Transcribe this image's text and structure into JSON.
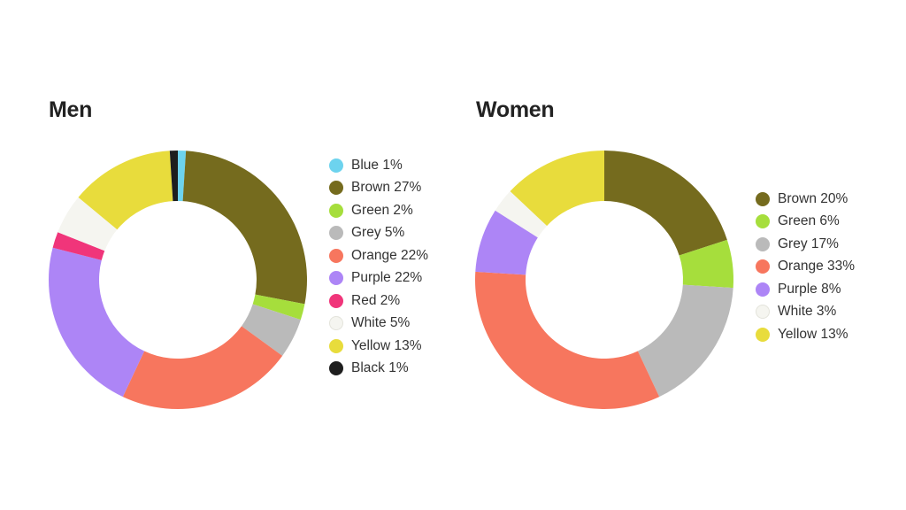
{
  "chart_data": [
    {
      "type": "pie",
      "title": "Men",
      "series": [
        {
          "name": "Blue",
          "value": 1,
          "color": "#6dd3ee"
        },
        {
          "name": "Brown",
          "value": 27,
          "color": "#756b1e"
        },
        {
          "name": "Green",
          "value": 2,
          "color": "#a6de3c"
        },
        {
          "name": "Grey",
          "value": 5,
          "color": "#bababa"
        },
        {
          "name": "Orange",
          "value": 22,
          "color": "#f7765e"
        },
        {
          "name": "Purple",
          "value": 22,
          "color": "#ad85f6"
        },
        {
          "name": "Red",
          "value": 2,
          "color": "#f0357a"
        },
        {
          "name": "White",
          "value": 5,
          "color": "#f5f5f0"
        },
        {
          "name": "Yellow",
          "value": 13,
          "color": "#e8dc3c"
        },
        {
          "name": "Black",
          "value": 1,
          "color": "#1e1e1e"
        }
      ],
      "legend": [
        "Blue 1%",
        "Brown 27%",
        "Green 2%",
        "Grey 5%",
        "Orange 22%",
        "Purple 22%",
        "Red 2%",
        "White 5%",
        "Yellow 13%",
        "Black 1%"
      ]
    },
    {
      "type": "pie",
      "title": "Women",
      "series": [
        {
          "name": "Brown",
          "value": 20,
          "color": "#756b1e"
        },
        {
          "name": "Green",
          "value": 6,
          "color": "#a6de3c"
        },
        {
          "name": "Grey",
          "value": 17,
          "color": "#bababa"
        },
        {
          "name": "Orange",
          "value": 33,
          "color": "#f7765e"
        },
        {
          "name": "Purple",
          "value": 8,
          "color": "#ad85f6"
        },
        {
          "name": "White",
          "value": 3,
          "color": "#f5f5f0"
        },
        {
          "name": "Yellow",
          "value": 13,
          "color": "#e8dc3c"
        }
      ],
      "legend": [
        "Brown 20%",
        "Green 6%",
        "Grey 17%",
        "Orange 33%",
        "Purple 8%",
        "White 3%",
        "Yellow 13%"
      ]
    }
  ]
}
